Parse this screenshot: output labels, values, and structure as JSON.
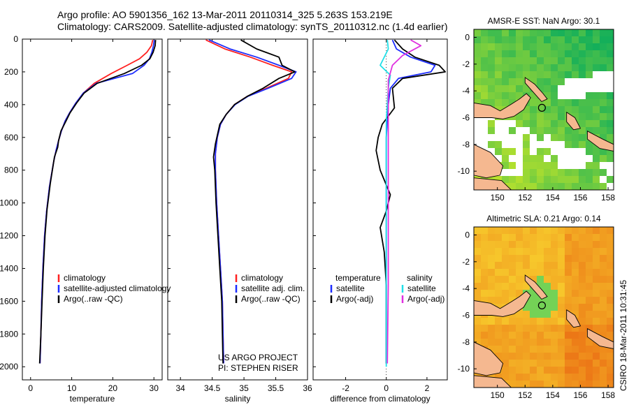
{
  "header": {
    "line1": "Argo profile: AO 5901356_162 13-Mar-2011 20110314_325 5.263S 153.219E",
    "line2": "Climatology: CARS2009. Satellite-adjusted climatology: synTS_20110312.nc (1.4d earlier)"
  },
  "side_label": "CSIRO 18-Mar-2011 10:31:45",
  "colors": {
    "climatology": "#ff2020",
    "satellite": "#1c2cff",
    "argo": "#000000",
    "salinity_satellite": "#20e0e8",
    "salinity_argo": "#e030e0",
    "land": "#f5b890",
    "map_missing": "#ffffff"
  },
  "chart_data": [
    {
      "id": "temperature",
      "type": "line",
      "xlabel": "temperature",
      "ylabel": "",
      "xlim": [
        -2,
        32
      ],
      "ylim": [
        2080,
        0
      ],
      "xticks": [
        0,
        10,
        20,
        30
      ],
      "yticks": [
        0,
        200,
        400,
        600,
        800,
        1000,
        1200,
        1400,
        1600,
        1800,
        2000
      ],
      "legend": {
        "position": "bottom-center",
        "entries": [
          "climatology",
          "satellite-adjusted climatology",
          "Argo(..raw -QC)"
        ]
      },
      "series": [
        {
          "name": "climatology",
          "color": "#ff2020",
          "x": [
            29.7,
            29.4,
            28.3,
            26.5,
            23.5,
            19.6,
            15.5,
            12.8,
            11.0,
            9.5,
            8.4,
            7.5,
            6.8,
            6.2,
            5.6,
            4.6,
            3.9,
            3.4,
            3.0,
            2.7,
            2.5,
            2.3
          ],
          "y": [
            5,
            40,
            80,
            120,
            160,
            210,
            270,
            330,
            390,
            450,
            500,
            560,
            620,
            680,
            750,
            900,
            1050,
            1200,
            1400,
            1600,
            1800,
            1980
          ]
        },
        {
          "name": "satellite-adjusted climatology",
          "color": "#1c2cff",
          "x": [
            30.1,
            29.9,
            29.5,
            28.9,
            27.6,
            24.8,
            16.0,
            12.8,
            11.0,
            9.5,
            8.4,
            7.5,
            6.8,
            6.2,
            5.6,
            4.6,
            3.9,
            3.4,
            3.0,
            2.7,
            2.5,
            2.3
          ],
          "y": [
            5,
            40,
            80,
            120,
            160,
            210,
            270,
            330,
            390,
            450,
            500,
            560,
            620,
            680,
            750,
            900,
            1050,
            1200,
            1400,
            1600,
            1800,
            1980
          ]
        },
        {
          "name": "Argo(..raw -QC)",
          "color": "#000000",
          "x": [
            30.4,
            30.3,
            29.8,
            29.0,
            27.0,
            22.8,
            16.2,
            13.0,
            11.2,
            9.6,
            8.6,
            7.4,
            6.8,
            6.6,
            5.8,
            4.8,
            4.0,
            3.5,
            3.1,
            2.8,
            2.5,
            2.2
          ],
          "y": [
            5,
            40,
            80,
            120,
            160,
            210,
            270,
            330,
            390,
            450,
            500,
            560,
            620,
            660,
            720,
            880,
            1040,
            1200,
            1400,
            1600,
            1800,
            1980
          ]
        }
      ]
    },
    {
      "id": "salinity",
      "type": "line",
      "xlabel": "salinity",
      "ylabel": "",
      "xlim": [
        33.8,
        36.0
      ],
      "ylim": [
        2080,
        0
      ],
      "xticks": [
        34,
        34.5,
        35,
        35.5,
        36
      ],
      "legend": {
        "position": "bottom-center",
        "entries": [
          "climatology",
          "satellite adj. clim.",
          "Argo(..raw -QC)"
        ]
      },
      "annotations": [
        "US ARGO PROJECT",
        "PI: STEPHEN RISER"
      ],
      "series": [
        {
          "name": "climatology",
          "color": "#ff2020",
          "x": [
            34.4,
            34.7,
            35.1,
            35.45,
            35.75,
            35.7,
            35.35,
            35.05,
            34.85,
            34.72,
            34.63,
            34.58,
            34.55,
            34.55,
            34.57,
            34.6,
            34.63,
            34.66,
            34.67,
            34.68
          ],
          "y": [
            5,
            60,
            110,
            160,
            200,
            240,
            300,
            350,
            400,
            460,
            520,
            600,
            700,
            800,
            1000,
            1200,
            1400,
            1600,
            1800,
            1980
          ]
        },
        {
          "name": "satellite adj. clim.",
          "color": "#1c2cff",
          "x": [
            34.45,
            34.78,
            35.2,
            35.55,
            35.82,
            35.75,
            35.38,
            35.06,
            34.86,
            34.72,
            34.63,
            34.58,
            34.55,
            34.55,
            34.57,
            34.6,
            34.63,
            34.66,
            34.67,
            34.68
          ],
          "y": [
            5,
            60,
            110,
            160,
            200,
            240,
            300,
            350,
            400,
            460,
            520,
            600,
            700,
            800,
            1000,
            1200,
            1400,
            1600,
            1800,
            1980
          ]
        },
        {
          "name": "Argo(..raw -QC)",
          "color": "#000000",
          "x": [
            34.95,
            35.2,
            35.55,
            35.6,
            35.8,
            35.55,
            35.3,
            35.05,
            34.85,
            34.72,
            34.62,
            34.55,
            34.52,
            34.54,
            34.56,
            34.59,
            34.62,
            34.65,
            34.66,
            34.67
          ],
          "y": [
            5,
            60,
            110,
            160,
            200,
            240,
            300,
            350,
            400,
            460,
            520,
            640,
            720,
            800,
            1000,
            1200,
            1400,
            1600,
            1800,
            1980
          ]
        }
      ]
    },
    {
      "id": "difference",
      "type": "line",
      "xlabel": "difference from climatology",
      "ylabel": "",
      "xlim": [
        -3.6,
        3.0
      ],
      "ylim": [
        2080,
        0
      ],
      "xticks": [
        -2,
        0,
        2
      ],
      "legend": {
        "position": "bottom-center",
        "groups": [
          {
            "title": "temperature",
            "entries": [
              "satellite",
              "Argo(-adj)"
            ]
          },
          {
            "title": "salinity",
            "entries": [
              "satellite",
              "Argo(-adj)"
            ]
          }
        ]
      },
      "series": [
        {
          "name": "temperature satellite",
          "color": "#1c2cff",
          "x": [
            0.3,
            0.5,
            1.2,
            2.4,
            2.2,
            0.6,
            0.2,
            0.1,
            0.0,
            0.0,
            0.0,
            0.0
          ],
          "y": [
            5,
            60,
            110,
            160,
            200,
            240,
            300,
            400,
            600,
            1000,
            1500,
            1980
          ]
        },
        {
          "name": "temperature Argo(-adj)",
          "color": "#000000",
          "x": [
            0.4,
            0.8,
            1.4,
            2.6,
            2.9,
            0.8,
            0.3,
            0.4,
            -0.2,
            -0.4,
            -0.5,
            -0.3,
            0.2,
            0.0,
            -0.3,
            -0.1,
            0.0,
            0.0,
            0.0
          ],
          "y": [
            5,
            60,
            110,
            160,
            200,
            240,
            300,
            420,
            520,
            600,
            680,
            800,
            950,
            1050,
            1150,
            1300,
            1500,
            1800,
            1980
          ]
        },
        {
          "name": "salinity satellite",
          "color": "#20e0e8",
          "x": [
            0.05,
            0.1,
            -0.3,
            0.2,
            0.1,
            0.0,
            0.0,
            0.0,
            0.0
          ],
          "y": [
            5,
            60,
            160,
            220,
            300,
            500,
            1000,
            1500,
            2000
          ]
        },
        {
          "name": "salinity Argo(-adj)",
          "color": "#e030e0",
          "x": [
            1.2,
            1.7,
            0.8,
            0.3,
            0.1,
            0.1,
            0.1,
            0.1,
            0.05
          ],
          "y": [
            5,
            40,
            100,
            160,
            250,
            500,
            1000,
            1500,
            1980
          ]
        }
      ]
    },
    {
      "id": "sst_map",
      "type": "heatmap",
      "title": "AMSR-E SST: NaN Argo: 30.1",
      "xlim": [
        148.3,
        158.4
      ],
      "ylim": [
        -11.4,
        0.6
      ],
      "xticks": [
        150,
        152,
        154,
        156,
        158
      ],
      "yticks": [
        0,
        -2,
        -4,
        -6,
        -8,
        -10
      ],
      "marker": {
        "lon": 153.219,
        "lat": -5.263
      }
    },
    {
      "id": "sla_map",
      "type": "heatmap",
      "title": "Altimetric SLA: 0.21 Argo: 0.14",
      "xlim": [
        148.3,
        158.4
      ],
      "ylim": [
        -11.4,
        0.6
      ],
      "xticks": [
        150,
        152,
        154,
        156,
        158
      ],
      "yticks": [
        0,
        -2,
        -4,
        -6,
        -8,
        -10
      ],
      "marker": {
        "lon": 153.219,
        "lat": -5.263
      }
    }
  ]
}
